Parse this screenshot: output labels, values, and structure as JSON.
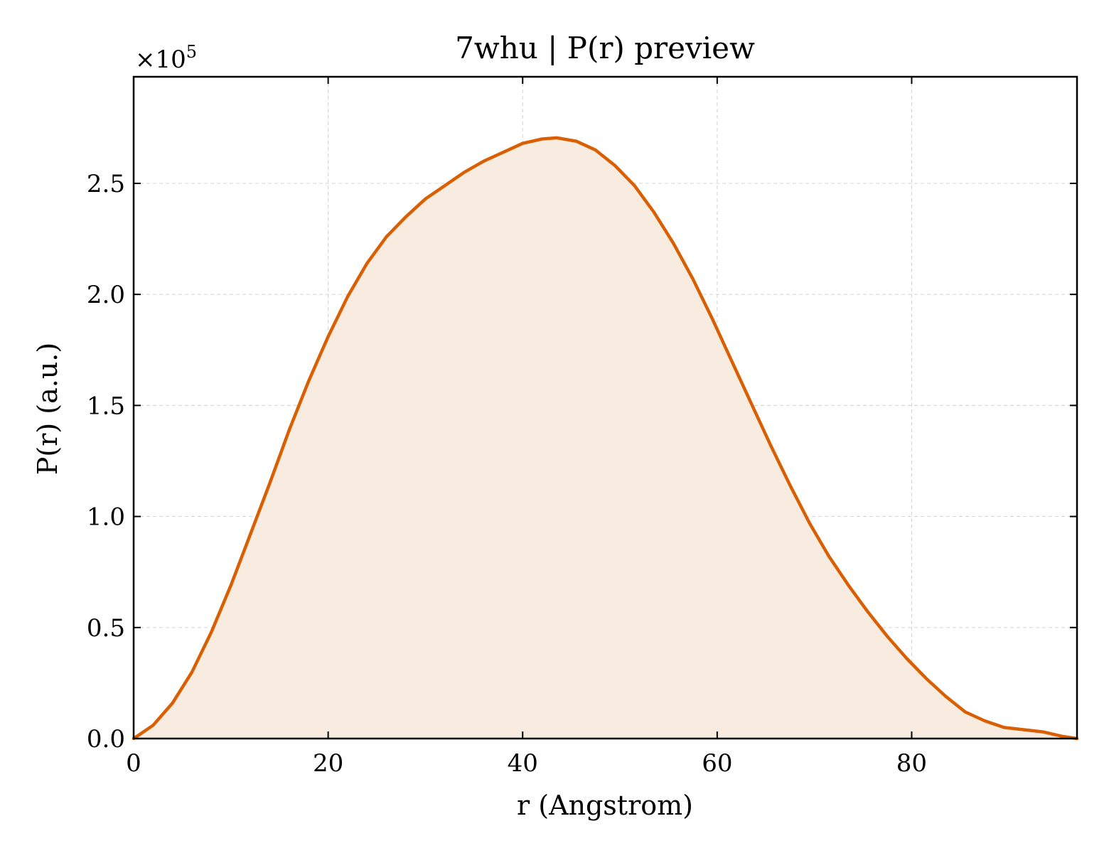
{
  "chart_data": {
    "type": "area",
    "title": "7whu | P(r) preview",
    "xlabel": "r (Angstrom)",
    "ylabel": "P(r) (a.u.)",
    "y_offset_label_prefix": "×10",
    "y_offset_label_exponent": "5",
    "xlim": [
      0,
      97
    ],
    "ylim": [
      0,
      2.98
    ],
    "xticks": [
      0,
      20,
      40,
      60,
      80
    ],
    "xtick_labels": [
      "0",
      "20",
      "40",
      "60",
      "80"
    ],
    "yticks": [
      0,
      0.5,
      1.0,
      1.5,
      2.0,
      2.5
    ],
    "ytick_labels": [
      "0.0",
      "0.5",
      "1.0",
      "1.5",
      "2.0",
      "2.5"
    ],
    "grid": true,
    "line_color": "#d95f02",
    "fill_color": "#f8ebe0",
    "series": [
      {
        "x": [
          0,
          2,
          4,
          6,
          8,
          10,
          12,
          14,
          16,
          18,
          20,
          22,
          24,
          26,
          28,
          30,
          32,
          34,
          36,
          38,
          40,
          42,
          43.5,
          45.5,
          47.5,
          49.5,
          51.5,
          53.5,
          55.5,
          57.5,
          59.5,
          61.5,
          63.5,
          65.5,
          67.5,
          69.5,
          71.5,
          73.5,
          75.5,
          77.5,
          79.5,
          81.5,
          83.5,
          85.5,
          87.5,
          89.5,
          91.5,
          93.5,
          95.5,
          97
        ],
        "values": [
          0.0,
          0.06,
          0.16,
          0.3,
          0.48,
          0.69,
          0.92,
          1.15,
          1.39,
          1.61,
          1.81,
          1.99,
          2.14,
          2.26,
          2.35,
          2.43,
          2.49,
          2.55,
          2.6,
          2.64,
          2.68,
          2.7,
          2.705,
          2.69,
          2.65,
          2.58,
          2.49,
          2.37,
          2.23,
          2.07,
          1.89,
          1.7,
          1.51,
          1.32,
          1.14,
          0.97,
          0.82,
          0.69,
          0.57,
          0.46,
          0.36,
          0.27,
          0.19,
          0.12,
          0.08,
          0.05,
          0.04,
          0.03,
          0.01,
          0.0
        ]
      }
    ]
  }
}
